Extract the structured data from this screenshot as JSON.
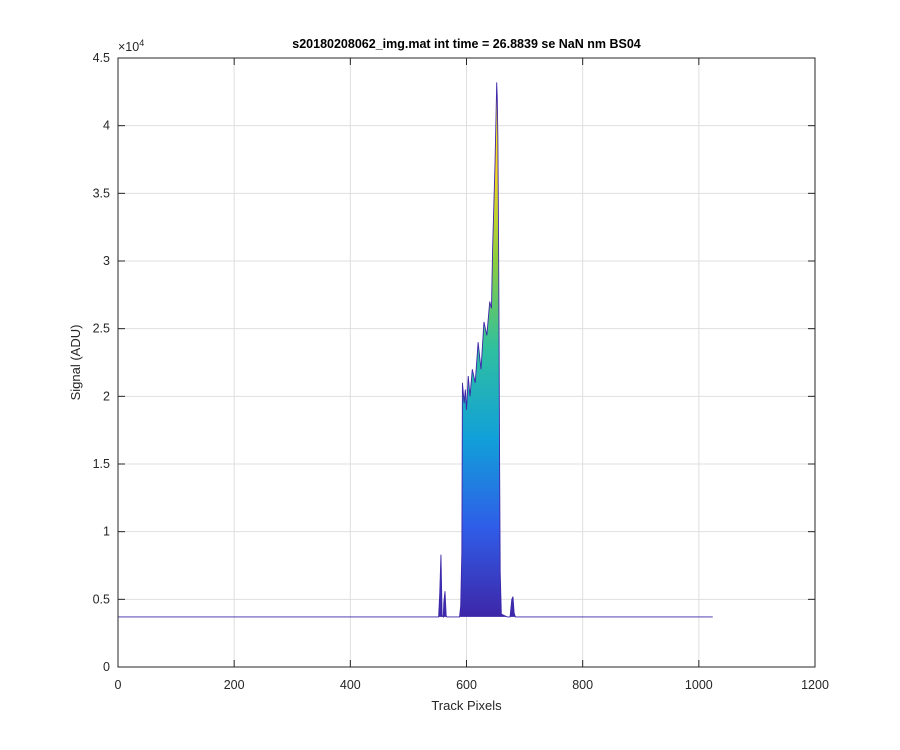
{
  "chart_data": {
    "type": "area",
    "title": "s20180208062_img.mat int time = 26.8839 se  NaN nm BS04",
    "xlabel": "Track Pixels",
    "ylabel": "Signal (ADU)",
    "xlim": [
      0,
      1200
    ],
    "ylim": [
      0,
      45000
    ],
    "xticks": [
      0,
      200,
      400,
      600,
      800,
      1000,
      1200
    ],
    "xtick_labels": [
      "0",
      "200",
      "400",
      "600",
      "800",
      "1000",
      "1200"
    ],
    "yticks": [
      0,
      5000,
      10000,
      15000,
      20000,
      25000,
      30000,
      35000,
      40000,
      45000
    ],
    "ytick_labels": [
      "0",
      "0.5",
      "1",
      "1.5",
      "2",
      "2.5",
      "3",
      "3.5",
      "4",
      "4.5"
    ],
    "y_exponent_label": "×10",
    "y_exponent": "4",
    "grid": true,
    "colormap": [
      "#3e26a8",
      "#2f5de8",
      "#11a0d9",
      "#2fbfa0",
      "#8ccd3e",
      "#f5d624",
      "#f9fb15"
    ],
    "baseline": 3700,
    "series": [
      {
        "x": [
          0,
          552,
          554,
          556,
          558,
          560,
          561,
          563,
          565,
          566,
          568,
          588,
          590,
          592,
          593,
          595,
          596,
          598,
          600,
          603,
          606,
          610,
          615,
          620,
          625,
          630,
          635,
          640,
          643,
          645,
          647,
          649,
          651,
          652,
          653,
          654,
          655,
          656,
          657,
          658,
          660,
          670,
          675,
          678,
          680,
          682,
          684,
          700,
          1024
        ],
        "y": [
          3700,
          3700,
          5500,
          8300,
          3800,
          3700,
          4800,
          5600,
          3800,
          3700,
          3700,
          3700,
          4500,
          8500,
          21000,
          20000,
          19500,
          20500,
          19000,
          21500,
          20000,
          22000,
          21000,
          24000,
          22000,
          25500,
          24500,
          27000,
          26500,
          31000,
          34000,
          37000,
          41000,
          43200,
          42000,
          39000,
          33000,
          25000,
          15000,
          7000,
          3900,
          3700,
          3700,
          5000,
          5200,
          4000,
          3700,
          3700,
          3700
        ]
      }
    ]
  }
}
